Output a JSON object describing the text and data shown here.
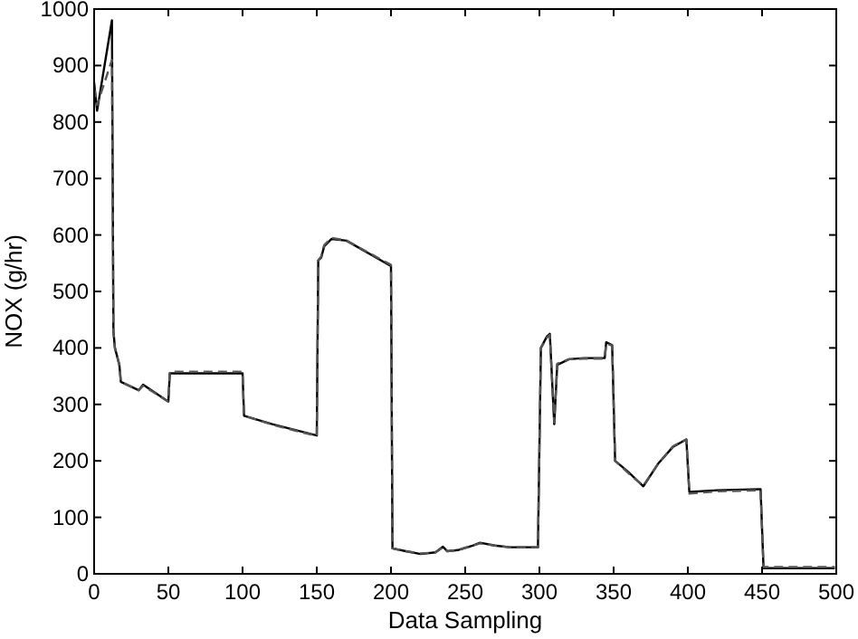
{
  "chart_data": {
    "type": "line",
    "xlabel": "Data Sampling",
    "ylabel": "NOX (g/hr)",
    "xlim": [
      0,
      500
    ],
    "ylim": [
      0,
      1000
    ],
    "xticks": [
      0,
      50,
      100,
      150,
      200,
      250,
      300,
      350,
      400,
      450,
      500
    ],
    "yticks": [
      0,
      100,
      200,
      300,
      400,
      500,
      600,
      700,
      800,
      900,
      1000
    ],
    "grid": false,
    "series": [
      {
        "color": "#000000",
        "line_style": "solid",
        "x": [
          0,
          2,
          12,
          13,
          14,
          17,
          18,
          30,
          33,
          50,
          51,
          100,
          101,
          120,
          150,
          151,
          153,
          155,
          160,
          170,
          200,
          201,
          210,
          220,
          230,
          235,
          238,
          245,
          255,
          260,
          270,
          280,
          299,
          301,
          305,
          307,
          310,
          312,
          320,
          330,
          344,
          345,
          349,
          351,
          360,
          370,
          380,
          390,
          399,
          401,
          420,
          449,
          451,
          499
        ],
        "values": [
          870,
          820,
          980,
          430,
          400,
          370,
          340,
          325,
          335,
          305,
          355,
          355,
          280,
          265,
          245,
          555,
          560,
          580,
          593,
          590,
          545,
          45,
          40,
          35,
          38,
          48,
          40,
          42,
          50,
          55,
          50,
          47,
          47,
          400,
          420,
          425,
          265,
          370,
          380,
          382,
          382,
          410,
          405,
          200,
          180,
          155,
          195,
          225,
          238,
          145,
          148,
          150,
          10,
          10
        ]
      },
      {
        "color": "#555555",
        "line_style": "dashed",
        "x": [
          0,
          2,
          12,
          13,
          14,
          17,
          18,
          30,
          33,
          50,
          51,
          100,
          101,
          120,
          150,
          151,
          153,
          155,
          160,
          170,
          200,
          201,
          210,
          220,
          230,
          235,
          238,
          245,
          255,
          260,
          270,
          280,
          299,
          301,
          305,
          307,
          310,
          312,
          320,
          330,
          344,
          345,
          349,
          351,
          360,
          370,
          380,
          390,
          399,
          401,
          420,
          449,
          451,
          499
        ],
        "values": [
          860,
          830,
          910,
          430,
          400,
          370,
          340,
          325,
          333,
          305,
          358,
          358,
          280,
          264,
          244,
          555,
          562,
          582,
          595,
          590,
          547,
          45,
          40,
          36,
          38,
          47,
          40,
          42,
          50,
          54,
          50,
          47,
          47,
          400,
          418,
          423,
          268,
          372,
          380,
          381,
          381,
          408,
          404,
          200,
          178,
          156,
          195,
          226,
          238,
          142,
          146,
          148,
          12,
          12
        ]
      }
    ]
  }
}
